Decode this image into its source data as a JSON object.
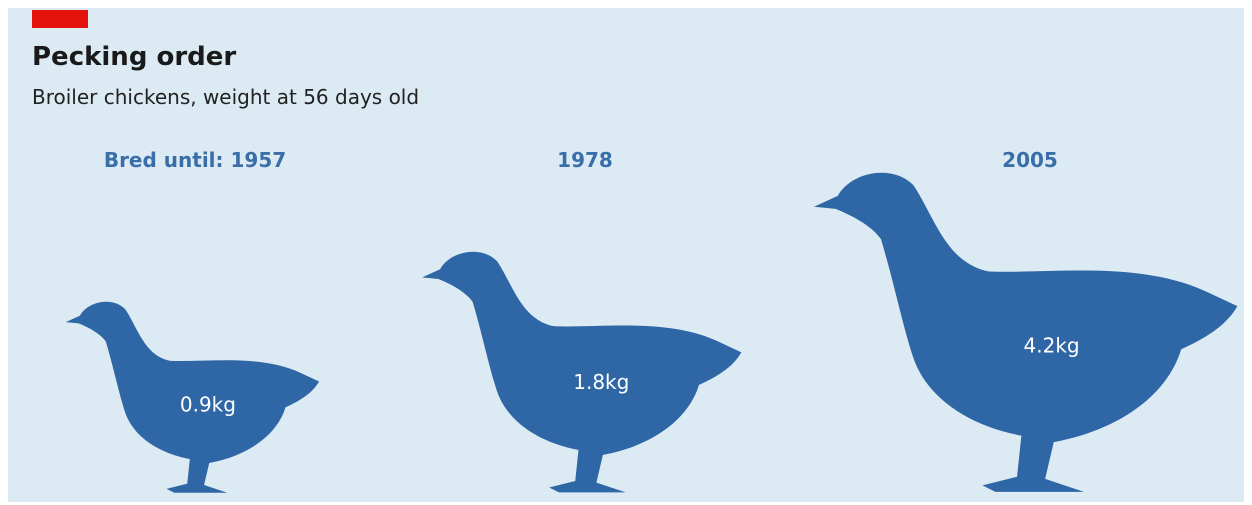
{
  "chart_data": {
    "type": "pictogram",
    "title": "Pecking order",
    "subtitle": "Broiler chickens, weight at 56 days old",
    "category_label": "Bred until:",
    "categories": [
      "1957",
      "1978",
      "2005"
    ],
    "values": [
      0.9,
      1.8,
      4.2
    ],
    "value_labels": [
      "0.9kg",
      "1.8kg",
      "4.2kg"
    ],
    "color": "#2f67a6"
  }
}
